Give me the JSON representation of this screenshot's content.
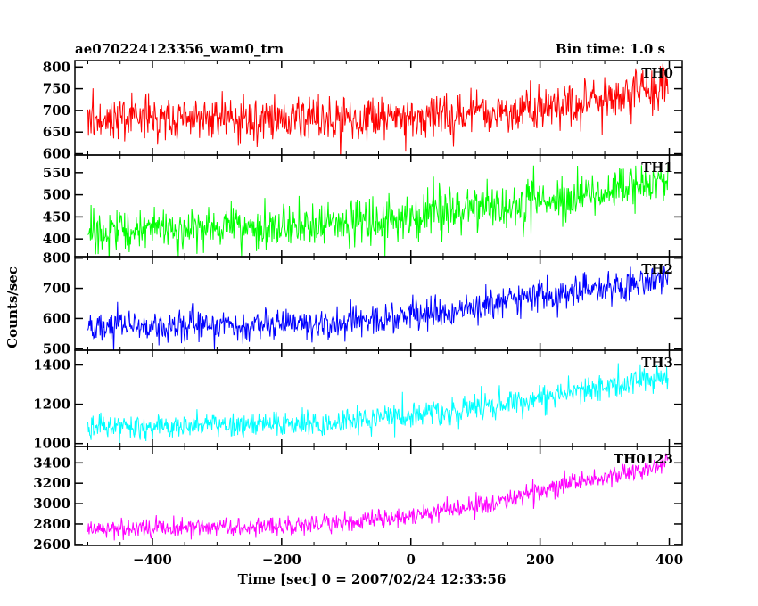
{
  "header": {
    "title": "ae070224123356_wam0_trn",
    "bin_time": "Bin time: 1.0 s"
  },
  "chart_data": {
    "type": "line",
    "title": "ae070224123356_wam0_trn",
    "xlabel": "Time [sec] 0 = 2007/02/24 12:33:56",
    "ylabel": "Counts/sec",
    "xlim": [
      -520,
      420
    ],
    "x_ticks": [
      -400,
      -200,
      0,
      200,
      400
    ],
    "x_tick_labels": [
      "−400",
      "−200",
      "0",
      "200",
      "400"
    ],
    "x_sampling": {
      "start": -500,
      "end": 398,
      "step": 1
    },
    "grid": false,
    "series": [
      {
        "name": "TH0",
        "color": "#ff0000",
        "ylim": [
          597,
          815
        ],
        "y_ticks": [
          600,
          650,
          700,
          750,
          800
        ],
        "trend": {
          "x": [
            -500,
            -200,
            -100,
            50,
            200,
            300,
            398
          ],
          "y": [
            685,
            680,
            675,
            690,
            705,
            725,
            760
          ]
        },
        "noise_sd": 28
      },
      {
        "name": "TH1",
        "color": "#00ff00",
        "ylim": [
          360,
          590
        ],
        "y_ticks": [
          400,
          450,
          500,
          550
        ],
        "trend": {
          "x": [
            -500,
            -200,
            0,
            100,
            200,
            300,
            398
          ],
          "y": [
            420,
            425,
            445,
            470,
            490,
            510,
            530
          ]
        },
        "noise_sd": 25
      },
      {
        "name": "TH2",
        "color": "#0000ff",
        "ylim": [
          495,
          805
        ],
        "y_ticks": [
          500,
          600,
          700,
          800
        ],
        "trend": {
          "x": [
            -500,
            -200,
            -100,
            0,
            100,
            200,
            300,
            398
          ],
          "y": [
            570,
            580,
            585,
            610,
            640,
            670,
            700,
            730
          ]
        },
        "noise_sd": 25
      },
      {
        "name": "TH3",
        "color": "#00ffff",
        "ylim": [
          985,
          1475
        ],
        "y_ticks": [
          1000,
          1200,
          1400
        ],
        "trend": {
          "x": [
            -500,
            -300,
            -200,
            -100,
            0,
            100,
            200,
            300,
            398
          ],
          "y": [
            1080,
            1090,
            1100,
            1120,
            1150,
            1180,
            1230,
            1280,
            1350
          ]
        },
        "noise_sd": 35
      },
      {
        "name": "TH0123",
        "color": "#ff00ff",
        "ylim": [
          2590,
          3560
        ],
        "y_ticks": [
          2600,
          2800,
          3000,
          3200,
          3400
        ],
        "trend": {
          "x": [
            -500,
            -300,
            -200,
            -100,
            0,
            100,
            200,
            300,
            398
          ],
          "y": [
            2750,
            2760,
            2770,
            2820,
            2880,
            2980,
            3120,
            3250,
            3400
          ]
        },
        "noise_sd": 50
      }
    ]
  }
}
